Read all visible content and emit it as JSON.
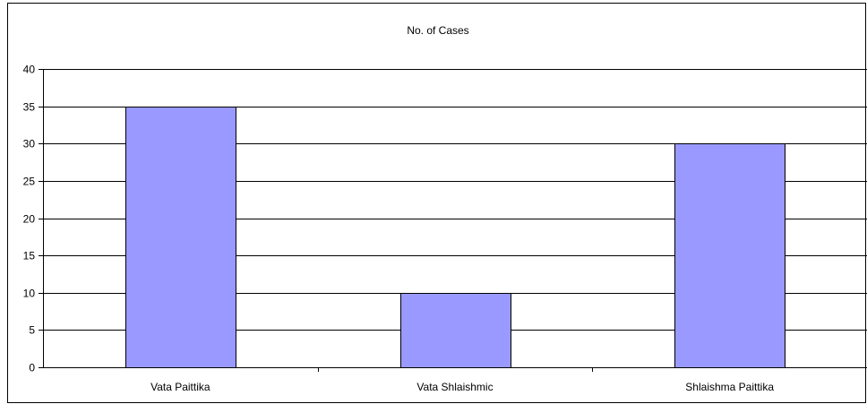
{
  "chart_data": {
    "type": "bar",
    "title": "No. of Cases",
    "categories": [
      "Vata Paittika",
      "Vata Shlaishmic",
      "Shlaishma Paittika"
    ],
    "values": [
      35,
      10,
      30
    ],
    "ylim": [
      0,
      40
    ],
    "yticks": [
      0,
      5,
      10,
      15,
      20,
      25,
      30,
      35,
      40
    ],
    "grid": true,
    "legend": "none",
    "colors": {
      "bar_fill": "#9999ff",
      "bar_stroke": "#000000",
      "grid": "#000000",
      "frame": "#000000",
      "text": "#000000"
    }
  }
}
